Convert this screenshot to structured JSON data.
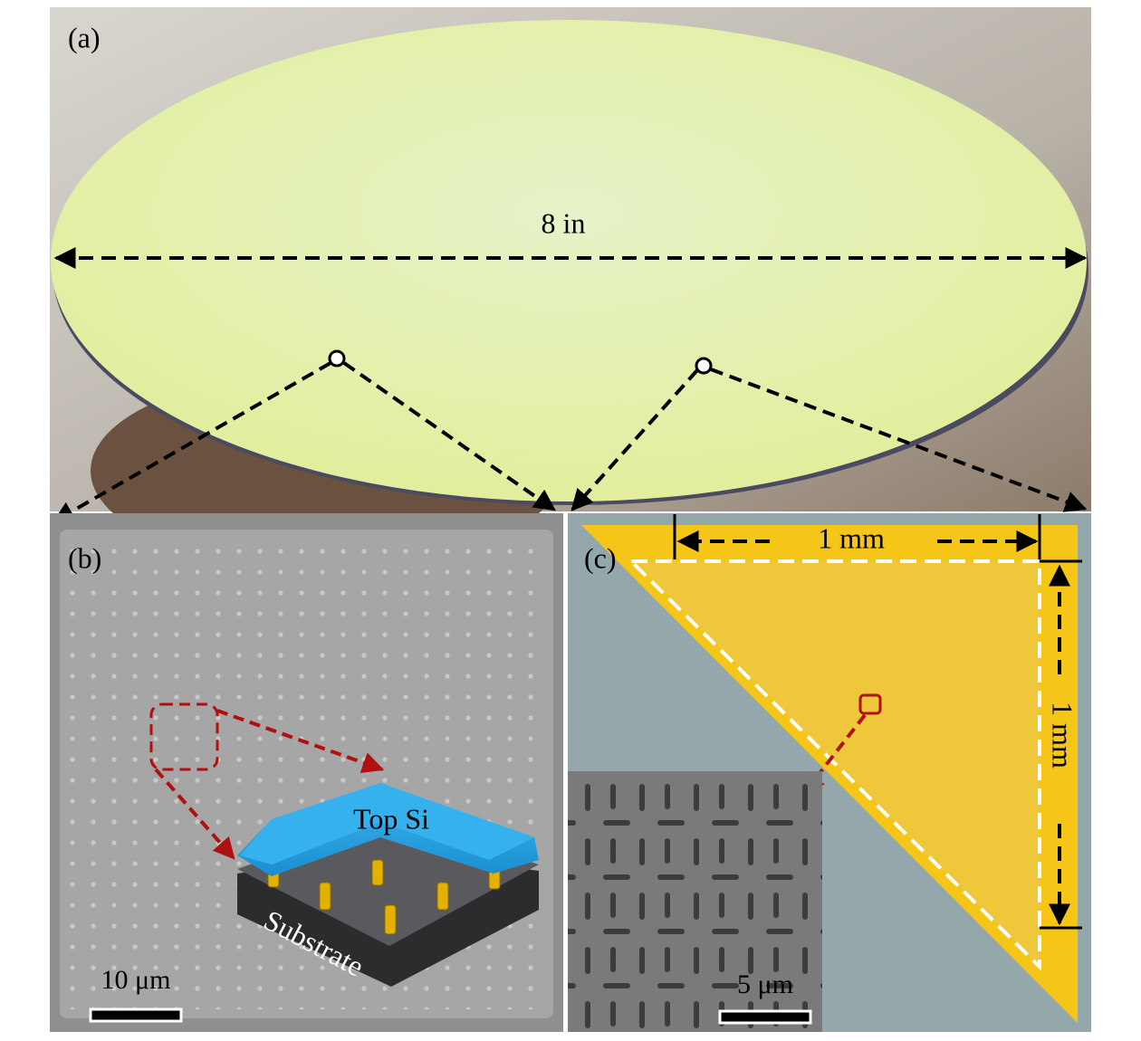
{
  "panels": [
    {
      "label": "(a)",
      "dimension": "8 in"
    },
    {
      "label": "(b)",
      "layers": [
        "Top Si",
        "Substrate"
      ],
      "scale_bar": "10 μm"
    },
    {
      "label": "(c)",
      "dimensions": [
        "1 mm",
        "1 mm"
      ],
      "scale_bar": "5 μm"
    }
  ]
}
